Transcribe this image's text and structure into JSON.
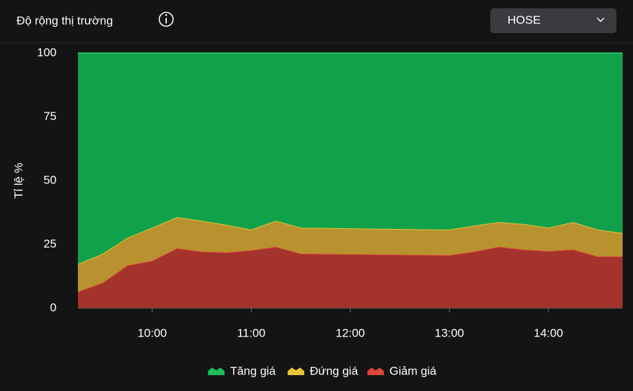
{
  "header": {
    "title": "Độ rộng thị trường",
    "dropdown": "HOSE"
  },
  "chart_data": {
    "type": "stacked-area",
    "ylabel": "Tỉ lệ %",
    "x": [
      "09:15",
      "09:30",
      "09:45",
      "10:00",
      "10:15",
      "10:30",
      "10:45",
      "11:00",
      "11:15",
      "11:30",
      "13:00",
      "13:15",
      "13:30",
      "13:45",
      "14:00",
      "14:15",
      "14:30",
      "14:45"
    ],
    "xlim": [
      "09:15",
      "14:45"
    ],
    "xticks": [
      "10:00",
      "11:00",
      "12:00",
      "13:00",
      "14:00"
    ],
    "ylim": [
      0,
      100
    ],
    "yticks": [
      0,
      25,
      50,
      75,
      100
    ],
    "grid": false,
    "series": [
      {
        "name": "Tăng giá",
        "color": "#12a14b",
        "line": "#1fbf5c",
        "values": [
          82.7,
          78.6,
          72.4,
          68.4,
          64.3,
          65.7,
          67.3,
          69.2,
          65.7,
          68.4,
          69.2,
          67.6,
          66.2,
          67,
          68.4,
          66.2,
          69.2,
          70.5
        ]
      },
      {
        "name": "Đứng giá",
        "color": "#b8922f",
        "line": "#e8c43c",
        "values": [
          10.8,
          11.4,
          10.8,
          13,
          12.2,
          12.1,
          10.8,
          8.1,
          10.2,
          10.2,
          10,
          10.2,
          9.7,
          10,
          9.2,
          10.8,
          10.5,
          9.2
        ]
      },
      {
        "name": "Giảm giá",
        "color": "#a3332b",
        "line": "#dc4538",
        "values": [
          6.5,
          10,
          16.8,
          18.6,
          23.5,
          22.2,
          21.9,
          22.7,
          24.1,
          21.4,
          20.8,
          22.2,
          24.1,
          23,
          22.4,
          23,
          20.3,
          20.3
        ]
      }
    ]
  }
}
